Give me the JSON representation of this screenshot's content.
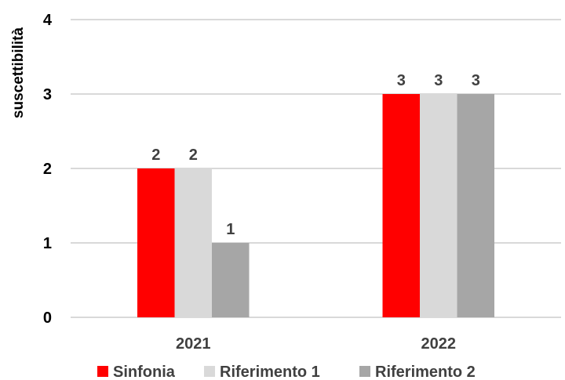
{
  "chart_data": {
    "type": "bar",
    "title": "",
    "xlabel": "",
    "ylabel": "suscettibilità",
    "categories": [
      "2021",
      "2022"
    ],
    "series": [
      {
        "name": "Sinfonia",
        "values": [
          2,
          3
        ],
        "color": "#ff0000"
      },
      {
        "name": "Riferimento 1",
        "values": [
          2,
          3
        ],
        "color": "#d9d9d9"
      },
      {
        "name": "Riferimento 2",
        "values": [
          1,
          3
        ],
        "color": "#a6a6a6"
      }
    ],
    "ylim": [
      0,
      4
    ],
    "yticks": [
      "0",
      "1",
      "2",
      "3",
      "4"
    ],
    "grid": true,
    "legend_position": "bottom",
    "data_labels": true
  }
}
